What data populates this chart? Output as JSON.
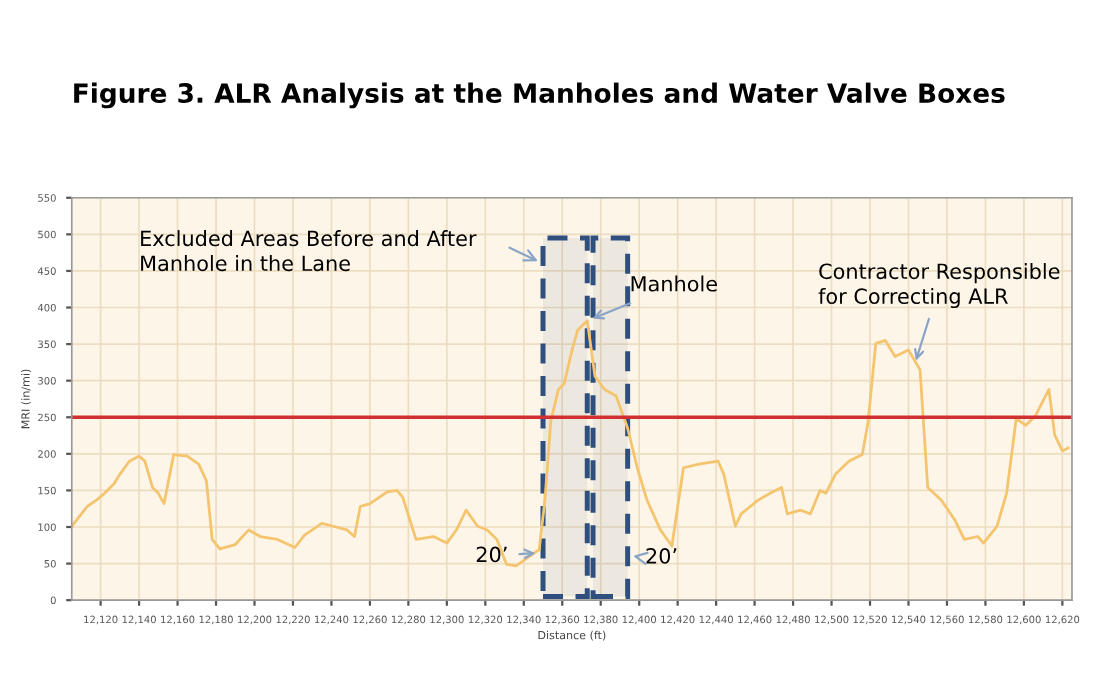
{
  "chart_data": {
    "type": "line",
    "title": "Figure 3. ALR Analysis at the Manholes and Water Valve Boxes",
    "xlabel": "Distance (ft)",
    "ylabel": "MRI (in/mi)",
    "series": [
      {
        "color": "#f5c46e",
        "x": [
          12105,
          12113,
          12118,
          12122,
          12127,
          12130,
          12135,
          12140,
          12143,
          12147,
          12150,
          12153,
          12155,
          12158,
          12165,
          12171,
          12175,
          12178,
          12182,
          12190,
          12197,
          12203,
          12212,
          12221,
          12226,
          12235,
          12241,
          12248,
          12252,
          12255,
          12260,
          12269,
          12274,
          12277,
          12284,
          12293,
          12300,
          12305,
          12310,
          12316,
          12321,
          12326,
          12331,
          12336,
          12343,
          12348,
          12351,
          12354,
          12358,
          12361,
          12365,
          12368,
          12373,
          12377,
          12382,
          12388,
          12394,
          12399,
          12404,
          12411,
          12417,
          12423,
          12431,
          12441,
          12444,
          12450,
          12453,
          12462,
          12468,
          12474,
          12477,
          12484,
          12489,
          12494,
          12497,
          12502,
          12509,
          12516,
          12519,
          12523,
          12528,
          12533,
          12540,
          12546,
          12550,
          12557,
          12564,
          12569,
          12576,
          12579,
          12586,
          12591,
          12596,
          12601,
          12606,
          12613,
          12616,
          12620,
          12623
        ],
        "values": [
          101,
          128,
          137,
          146,
          159,
          172,
          190,
          197,
          190,
          154,
          146,
          132,
          159,
          199,
          197,
          186,
          163,
          83,
          70,
          76,
          96,
          87,
          83,
          72,
          89,
          105,
          101,
          96,
          87,
          128,
          132,
          148,
          150,
          141,
          83,
          87,
          78,
          96,
          123,
          101,
          96,
          83,
          49,
          47,
          60,
          69,
          137,
          244,
          288,
          296,
          341,
          369,
          382,
          306,
          288,
          279,
          235,
          181,
          137,
          96,
          74,
          181,
          186,
          190,
          172,
          101,
          118,
          137,
          146,
          154,
          118,
          123,
          118,
          150,
          146,
          172,
          190,
          199,
          244,
          351,
          355,
          333,
          342,
          315,
          154,
          137,
          110,
          83,
          87,
          78,
          101,
          146,
          248,
          239,
          252,
          288,
          226,
          204,
          208
        ]
      }
    ],
    "xlim": [
      12105,
      12625
    ],
    "ylim": [
      0,
      550
    ],
    "xticks": [
      {
        "value": 12120,
        "label": "12,120"
      },
      {
        "value": 12140,
        "label": "12,140"
      },
      {
        "value": 12160,
        "label": "12,160"
      },
      {
        "value": 12180,
        "label": "12,180"
      },
      {
        "value": 12200,
        "label": "12,200"
      },
      {
        "value": 12220,
        "label": "12,220"
      },
      {
        "value": 12240,
        "label": "12,240"
      },
      {
        "value": 12260,
        "label": "12,260"
      },
      {
        "value": 12280,
        "label": "12,280"
      },
      {
        "value": 12300,
        "label": "12,300"
      },
      {
        "value": 12320,
        "label": "12,320"
      },
      {
        "value": 12340,
        "label": "12,340"
      },
      {
        "value": 12360,
        "label": "12,360"
      },
      {
        "value": 12380,
        "label": "12,380"
      },
      {
        "value": 12400,
        "label": "12,400"
      },
      {
        "value": 12420,
        "label": "12,420"
      },
      {
        "value": 12440,
        "label": "12,440"
      },
      {
        "value": 12460,
        "label": "12,460"
      },
      {
        "value": 12480,
        "label": "12,480"
      },
      {
        "value": 12500,
        "label": "12,500"
      },
      {
        "value": 12520,
        "label": "12,520"
      },
      {
        "value": 12540,
        "label": "12,540"
      },
      {
        "value": 12560,
        "label": "12,560"
      },
      {
        "value": 12580,
        "label": "12,580"
      },
      {
        "value": 12600,
        "label": "12,600"
      },
      {
        "value": 12620,
        "label": "12,620"
      }
    ],
    "yticks": [
      0,
      50,
      100,
      150,
      200,
      250,
      300,
      350,
      400,
      450,
      500,
      550
    ],
    "grid": true,
    "marker": "none",
    "line_style": "solid",
    "ref_lines": [
      {
        "axis": "y",
        "value": 250,
        "color": "#d03030",
        "line_style": "solid"
      }
    ],
    "bands": [
      {
        "axis": "x",
        "from": 12350,
        "to": 12373,
        "color": "#2f4f7f"
      },
      {
        "axis": "x",
        "from": 12376,
        "to": 12394,
        "color": "#2f4f7f"
      }
    ],
    "annotations": [
      "Excluded Areas Before and After\nManhole in the Lane",
      {
        "text": "Manhole",
        "x": 12373,
        "y": 382
      },
      {
        "text": "Contractor Responsible\nfor Correcting ALR",
        "x": 12543,
        "y": 320
      },
      {
        "text": "20’",
        "x": 12349,
        "y": 65
      },
      "20’"
    ]
  }
}
